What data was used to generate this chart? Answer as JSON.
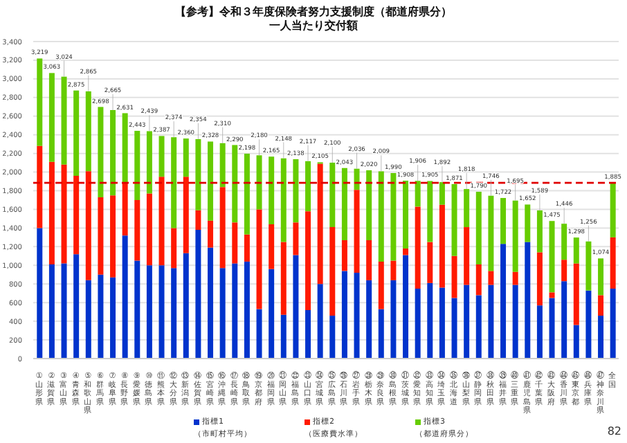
{
  "chart_data": {
    "type": "bar",
    "stacked": true,
    "title": "【参考】令和３年度保険者努力支援制度（都道府県分）",
    "subtitle": "一人当たり交付額",
    "categories": [
      "①山形県",
      "②滋賀県",
      "③富山県",
      "④青森県",
      "⑤和歌山県",
      "⑥群馬県",
      "⑦岐阜県",
      "⑧長野県",
      "⑨愛媛県",
      "⑩徳島県",
      "⑪熊本県",
      "⑫大分県",
      "⑬新潟県",
      "⑭佐賀県",
      "⑮宮崎県",
      "⑯沖縄県",
      "⑰長崎県",
      "⑱鳥取県",
      "⑲京都府",
      "⑳福岡県",
      "㉑岡山県",
      "㉒福島県",
      "㉓山口県",
      "㉔宮城県",
      "㉕広島県",
      "㉖石川県",
      "㉗岩手県",
      "㉘栃木県",
      "㉙奈良県",
      "㉚島根県",
      "㉛茨城県",
      "㉜愛知県",
      "㉝高知県",
      "㉞埼玉県",
      "㉟北海道",
      "㊱山梨県",
      "㊲静岡県",
      "㊳秋田県",
      "㊴福井県",
      "㊵三重県",
      "㊶鹿児島県",
      "㊷千葉県",
      "㊸大阪府",
      "㊹香川県",
      "㊺東京都",
      "㊻兵庫県",
      "㊼神奈川県",
      "全国"
    ],
    "series": [
      {
        "name": "指標1",
        "color": "#0033cc",
        "values": [
          1400,
          1010,
          1020,
          1120,
          840,
          900,
          870,
          1320,
          1050,
          1000,
          1000,
          970,
          1130,
          1380,
          1190,
          970,
          1020,
          1040,
          530,
          960,
          470,
          1110,
          520,
          800,
          460,
          940,
          920,
          840,
          530,
          840,
          1110,
          750,
          810,
          760,
          650,
          790,
          680,
          790,
          1230,
          790,
          1250,
          570,
          650,
          830,
          360,
          730,
          460,
          750
        ]
      },
      {
        "name": "指標2",
        "color": "#ff1a00",
        "values": [
          880,
          1100,
          1060,
          840,
          1170,
          830,
          880,
          570,
          650,
          770,
          950,
          430,
          820,
          210,
          290,
          870,
          440,
          290,
          1070,
          480,
          780,
          350,
          1060,
          1290,
          950,
          330,
          890,
          430,
          510,
          210,
          70,
          880,
          440,
          890,
          450,
          620,
          330,
          150,
          0,
          140,
          0,
          570,
          60,
          230,
          660,
          0,
          220,
          550
        ]
      },
      {
        "name": "指標3",
        "color": "#66cc00",
        "values": [
          939,
          953,
          944,
          915,
          855,
          968,
          915,
          741,
          743,
          669,
          437,
          974,
          410,
          764,
          848,
          470,
          830,
          868,
          580,
          725,
          898,
          678,
          537,
          15,
          690,
          773,
          226,
          750,
          969,
          940,
          728,
          276,
          655,
          242,
          771,
          408,
          780,
          806,
          492,
          765,
          402,
          449,
          765,
          386,
          278,
          526,
          394,
          585
        ]
      }
    ],
    "totals": [
      "3,219",
      "3,063",
      "3,024",
      "2,875",
      "2,865",
      "2,698",
      "2,665",
      "2,631",
      "2,443",
      "2,439",
      "2,387",
      "2,374",
      "2,360",
      "2,354",
      "2,328",
      "2,310",
      "2,290",
      "2,198",
      "2,180",
      "2,165",
      "2,148",
      "2,138",
      "2,117",
      "2,105",
      "2,100",
      "2,043",
      "2,036",
      "2,020",
      "2,009",
      "1,990",
      "1,908",
      "1,906",
      "1,905",
      "1,892",
      "1,871",
      "1,818",
      "1,790",
      "1,746",
      "1,722",
      "1,695",
      "1,652",
      "1,589",
      "1,475",
      "1,446",
      "1,298",
      "1,256",
      "1,074",
      "1,885"
    ],
    "ylim": [
      0,
      3400
    ],
    "yticks": [
      0,
      {
        "value": 200,
        "label": "200"
      },
      {
        "value": 400,
        "label": "400"
      },
      {
        "value": 600,
        "label": "600"
      },
      {
        "value": 800,
        "label": "800"
      },
      {
        "value": 1000,
        "label": "1,000"
      },
      {
        "value": 1200,
        "label": "1,200"
      },
      {
        "value": 1400,
        "label": "1,400"
      },
      {
        "value": 1600,
        "label": "1,600"
      },
      {
        "value": 1800,
        "label": "1,800"
      },
      {
        "value": 2000,
        "label": "2,000"
      },
      {
        "value": 2200,
        "label": "2,200"
      },
      {
        "value": 2400,
        "label": "2,400"
      },
      {
        "value": 2600,
        "label": "2,600"
      },
      {
        "value": 2800,
        "label": "2,800"
      },
      {
        "value": 3000,
        "label": "3,000"
      },
      {
        "value": 3200,
        "label": "3,200"
      },
      {
        "value": 3400,
        "label": "3,400"
      }
    ],
    "grid": "y",
    "ref_lines": [
      {
        "axis": "y",
        "value": 1885,
        "color": "#e00000",
        "line_style": "dashed"
      }
    ],
    "legend": "bottom",
    "annotations": [
      "（市町村平均）",
      "（医療費水準）",
      "（都道府県分）",
      "82"
    ]
  }
}
